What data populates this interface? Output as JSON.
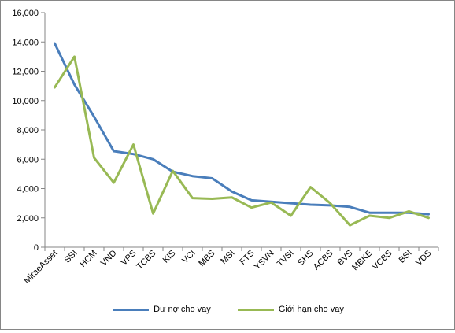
{
  "chart_data": {
    "type": "line",
    "title": "",
    "xlabel": "",
    "ylabel": "",
    "ylim": [
      0,
      16000
    ],
    "yticks": [
      "0",
      "2,000",
      "4,000",
      "6,000",
      "8,000",
      "10,000",
      "12,000",
      "14,000",
      "16,000"
    ],
    "grid": false,
    "legend_position": "bottom",
    "categories": [
      "MiraeAsset",
      "SSI",
      "HCM",
      "VND",
      "VPS",
      "TCBS",
      "KIS",
      "VCI",
      "MBS",
      "MSI",
      "FTS",
      "YSVN",
      "TVSI",
      "SHS",
      "ACBS",
      "BVS",
      "MBKE",
      "VCBS",
      "BSI",
      "VDS"
    ],
    "series": [
      {
        "name": "Dư nợ cho vay",
        "color": "#4a7ebb",
        "values": [
          13900,
          11100,
          8900,
          6550,
          6350,
          6000,
          5150,
          4850,
          4700,
          3800,
          3200,
          3100,
          3000,
          2900,
          2850,
          2750,
          2350,
          2350,
          2350,
          2250
        ]
      },
      {
        "name": "Giới hạn cho vay",
        "color": "#98b954",
        "values": [
          10900,
          13000,
          6100,
          4400,
          7000,
          2300,
          5200,
          3350,
          3300,
          3400,
          2700,
          3050,
          2150,
          4100,
          3000,
          1500,
          2150,
          2000,
          2450,
          2000
        ]
      }
    ]
  }
}
